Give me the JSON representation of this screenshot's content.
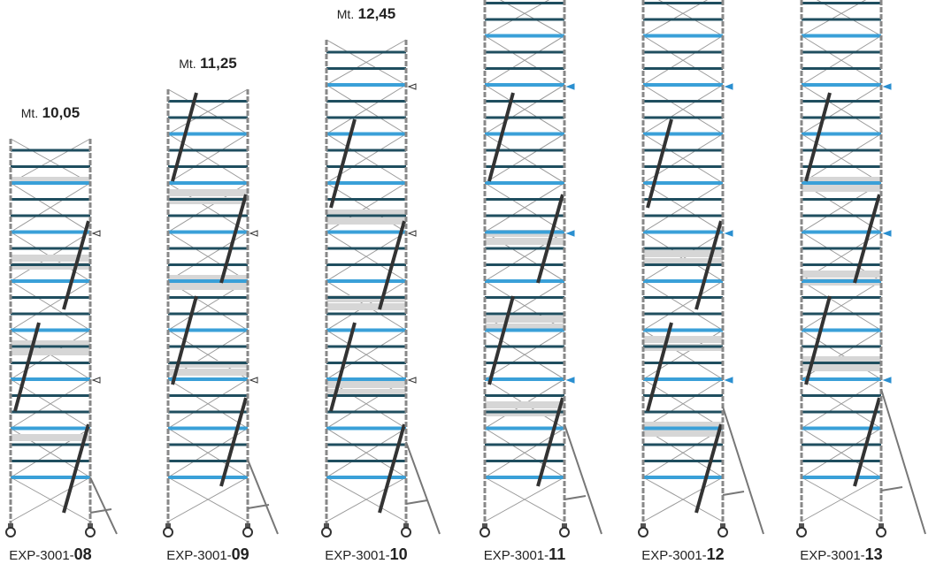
{
  "towers": [
    {
      "height_prefix": "Mt.",
      "height": "10,05",
      "model_prefix": "EXP-3001-",
      "model": "08"
    },
    {
      "height_prefix": "Mt.",
      "height": "11,25",
      "model_prefix": "EXP-3001-",
      "model": "09"
    },
    {
      "height_prefix": "Mt.",
      "height": "12,45",
      "model_prefix": "EXP-3001-",
      "model": "10"
    },
    {
      "model_prefix": "EXP-3001-",
      "model": "11"
    },
    {
      "model_prefix": "EXP-3001-",
      "model": "12"
    },
    {
      "model_prefix": "EXP-3001-",
      "model": "13"
    }
  ]
}
